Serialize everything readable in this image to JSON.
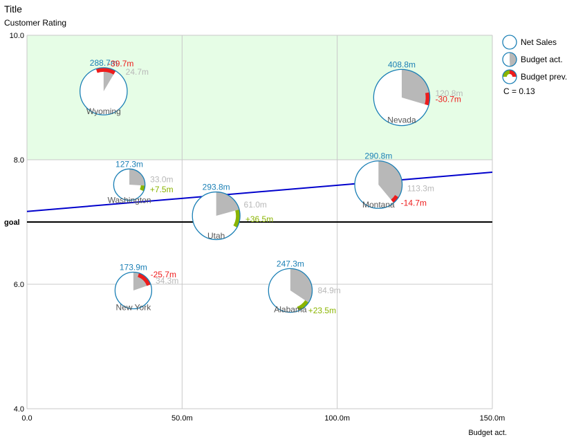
{
  "title": "Title",
  "subtitle": "Customer Rating",
  "xlabel": "Budget act.",
  "colors": {
    "net_sales": "#1a7fb5",
    "budget_act": "#b8b8b8",
    "positive": "#8ab400",
    "negative": "#ee1c1c",
    "trend": "#0000cc",
    "goal": "#000000",
    "zone": "#e6fde6",
    "grid": "#c8c8c8"
  },
  "legend": {
    "items": [
      "Net Sales",
      "Budget act.",
      "Budget prev."
    ],
    "note": "C = 0.13"
  },
  "chart_data": {
    "type": "scatter",
    "title": "Title",
    "ylabel": "Customer Rating",
    "xlabel": "Budget act.",
    "xlim": [
      0,
      150
    ],
    "ylim": [
      4,
      10
    ],
    "x_ticks": [
      "0.0",
      "50.0m",
      "100.0m",
      "150.0m"
    ],
    "y_ticks": [
      "4.0",
      "6.0",
      "8.0",
      "10.0"
    ],
    "goal": {
      "value": 7.0,
      "label": "goal"
    },
    "target_zone": {
      "y_from": 8.0,
      "y_to": 10.0
    },
    "trend_line": {
      "start": [
        0,
        7.17
      ],
      "end": [
        150,
        7.8
      ]
    },
    "points": [
      {
        "name": "Wyoming",
        "x": 24.7,
        "y": 9.1,
        "net_sales": 288.7,
        "net_sales_label": "288.7m",
        "budget_act_label": "24.7m",
        "delta": -39.7,
        "delta_label": "-39.7m"
      },
      {
        "name": "Nevada",
        "x": 120.8,
        "y": 9.0,
        "net_sales": 408.8,
        "net_sales_label": "408.8m",
        "budget_act_label": "120.8m",
        "delta": -30.7,
        "delta_label": "-30.7m"
      },
      {
        "name": "Washington",
        "x": 33.0,
        "y": 7.6,
        "net_sales": 127.3,
        "net_sales_label": "127.3m",
        "budget_act_label": "33.0m",
        "delta": 7.5,
        "delta_label": "+7.5m"
      },
      {
        "name": "Utah",
        "x": 61.0,
        "y": 7.1,
        "net_sales": 293.8,
        "net_sales_label": "293.8m",
        "budget_act_label": "61.0m",
        "delta": 36.5,
        "delta_label": "+36.5m"
      },
      {
        "name": "Montana",
        "x": 113.3,
        "y": 7.6,
        "net_sales": 290.8,
        "net_sales_label": "290.8m",
        "budget_act_label": "113.3m",
        "delta": -14.7,
        "delta_label": "-14.7m"
      },
      {
        "name": "New York",
        "x": 34.3,
        "y": 5.9,
        "net_sales": 173.9,
        "net_sales_label": "173.9m",
        "budget_act_label": "34.3m",
        "delta": -25.7,
        "delta_label": "-25.7m"
      },
      {
        "name": "Alabama",
        "x": 84.9,
        "y": 5.9,
        "net_sales": 247.3,
        "net_sales_label": "247.3m",
        "budget_act_label": "84.9m",
        "delta": 23.5,
        "delta_label": "+23.5m"
      }
    ]
  }
}
